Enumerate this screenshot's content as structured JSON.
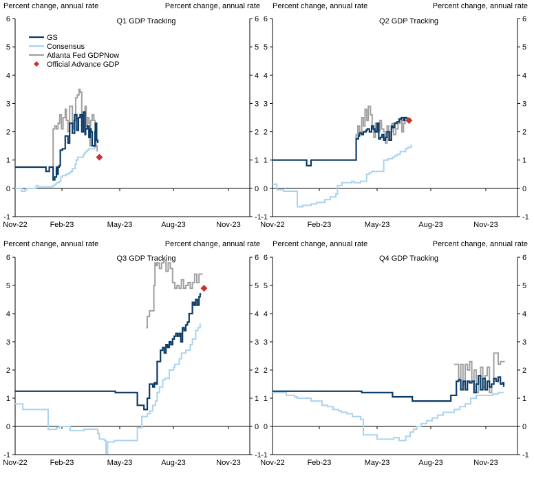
{
  "palette": {
    "gs": "#0b3a66",
    "consensus": "#a9d3ee",
    "gdpnow": "#a0a0a0",
    "advance": "#c83232",
    "axis": "#000000"
  },
  "chart_data": [
    {
      "type": "line",
      "title": "Q1 GDP Tracking",
      "ylabel_left": "Percent change, annual rate",
      "ylabel_right": "Percent change, annual rate",
      "ylim": [
        -1,
        6
      ],
      "yticks": [
        "6",
        "5",
        "4",
        "3",
        "2",
        "1",
        "0",
        "-1"
      ],
      "xticks": [
        "Nov-22",
        "Feb-23",
        "May-23",
        "Aug-23",
        "Nov-23"
      ],
      "legend": {
        "placement": "top-left",
        "entries": [
          "GS",
          "Consensus",
          "Atlanta Fed GDPNow",
          "Official Advance GDP"
        ]
      },
      "series": [
        {
          "name": "GS",
          "color": "#0b3a66",
          "x": [
            0,
            55,
            56,
            60,
            62,
            68,
            69,
            72,
            75,
            76,
            78,
            80,
            82,
            86,
            91,
            96,
            99,
            104,
            108,
            112,
            115,
            118,
            121,
            124,
            127,
            128,
            131,
            134,
            136,
            138,
            140,
            145,
            146,
            148,
            150
          ],
          "y": [
            0.75,
            0.75,
            0.6,
            0.6,
            0.75,
            0.75,
            0.3,
            0.4,
            0.75,
            0.5,
            0.75,
            0.8,
            1.35,
            1.4,
            1.85,
            1.6,
            2.3,
            1.95,
            2.6,
            2.05,
            2.5,
            2.6,
            2.0,
            2.7,
            1.9,
            2.1,
            2.2,
            1.8,
            2.1,
            2.0,
            1.5,
            2.0,
            2.3,
            1.7,
            1.6
          ]
        },
        {
          "name": "Consensus",
          "color": "#a9d3ee",
          "x": [
            0,
            10,
            12,
            18,
            21,
            36,
            38,
            42,
            65,
            68,
            72,
            75,
            80,
            83,
            86,
            92,
            98,
            101,
            104,
            109,
            111,
            114,
            124,
            126,
            128,
            131,
            134,
            142,
            144,
            146,
            148
          ],
          "y": [
            0,
            0,
            -0.1,
            -0.05,
            0,
            0,
            0.1,
            0.05,
            0.05,
            0.1,
            0.15,
            0.2,
            0.25,
            0.4,
            0.45,
            0.5,
            0.55,
            0.6,
            0.7,
            0.85,
            1.0,
            1.1,
            1.2,
            1.25,
            1.3,
            1.35,
            1.4,
            1.4,
            1.45,
            1.5,
            1.45
          ]
        },
        {
          "name": "Atlanta Fed GDPNow",
          "color": "#a0a0a0",
          "x": [
            68,
            69,
            72,
            75,
            78,
            81,
            84,
            87,
            91,
            93,
            96,
            99,
            104,
            106,
            110,
            113,
            116,
            118,
            121,
            124,
            127,
            129,
            131,
            134,
            136,
            137,
            140,
            143,
            145,
            147,
            149
          ],
          "y": [
            0.7,
            2.1,
            2.2,
            2.1,
            2.3,
            2.6,
            2.1,
            2.5,
            2.8,
            2.4,
            2.0,
            2.9,
            2.1,
            2.4,
            3.2,
            3.3,
            3.5,
            3.4,
            2.2,
            2.6,
            2.9,
            2.2,
            2.5,
            2.3,
            1.5,
            2.4,
            2.6,
            2.4,
            2.0,
            1.5,
            1.3
          ]
        },
        {
          "name": "Official Advance GDP",
          "color": "#c83232",
          "marker": "diamond",
          "x": [
            153
          ],
          "y": [
            1.1
          ]
        }
      ]
    },
    {
      "type": "line",
      "title": "Q2 GDP Tracking",
      "ylabel_left": "Percent change, annual rate",
      "ylabel_right": "Percent change, annual rate",
      "ylim": [
        -1,
        6
      ],
      "yticks": [
        "6",
        "5",
        "4",
        "3",
        "2",
        "1",
        "0",
        "-1"
      ],
      "xticks": [
        "Nov-22",
        "Feb-23",
        "May-23",
        "Aug-23",
        "Nov-23"
      ],
      "series": [
        {
          "name": "GS",
          "color": "#0b3a66",
          "x": [
            0,
            60,
            62,
            68,
            70,
            150,
            152,
            156,
            158,
            162,
            165,
            170,
            172,
            176,
            180,
            183,
            186,
            190,
            193,
            196,
            199,
            202,
            205,
            208,
            212,
            216,
            218,
            222,
            226,
            230,
            234,
            238,
            240,
            244
          ],
          "y": [
            1.0,
            1.0,
            0.8,
            0.8,
            1.0,
            1.0,
            1.75,
            1.85,
            1.95,
            1.9,
            2.0,
            2.05,
            2.1,
            2.0,
            2.2,
            2.1,
            2.0,
            2.3,
            1.75,
            1.8,
            1.9,
            1.7,
            1.8,
            2.0,
            1.7,
            2.2,
            2.15,
            2.3,
            2.35,
            2.45,
            2.5,
            2.4,
            2.5,
            2.45
          ]
        },
        {
          "name": "Consensus",
          "color": "#a9d3ee",
          "x": [
            0,
            6,
            8,
            20,
            40,
            45,
            55,
            70,
            80,
            95,
            105,
            115,
            118,
            126,
            144,
            148,
            160,
            168,
            171,
            176,
            180,
            198,
            202,
            210,
            218,
            222,
            226,
            232,
            238,
            242,
            246,
            252
          ],
          "y": [
            0.15,
            0.15,
            -0.05,
            -0.1,
            -0.1,
            -0.65,
            -0.6,
            -0.55,
            -0.5,
            -0.4,
            -0.3,
            -0.2,
            0.1,
            0.2,
            0.25,
            0.2,
            0.25,
            0.25,
            0.5,
            0.55,
            0.6,
            0.6,
            1.0,
            1.05,
            1.1,
            1.15,
            1.2,
            1.3,
            1.3,
            1.4,
            1.45,
            1.55
          ]
        },
        {
          "name": "Atlanta Fed GDPNow",
          "color": "#a0a0a0",
          "x": [
            150,
            152,
            155,
            158,
            162,
            165,
            168,
            171,
            174,
            178,
            181,
            184,
            187,
            191,
            195,
            198,
            202,
            205,
            208,
            211,
            214,
            217,
            220,
            224,
            228,
            232,
            235,
            238,
            241
          ],
          "y": [
            1.8,
            1.9,
            2.2,
            2.0,
            2.5,
            2.2,
            2.8,
            2.4,
            2.9,
            2.6,
            2.2,
            1.8,
            2.3,
            2.0,
            2.4,
            2.1,
            2.0,
            1.6,
            2.2,
            1.7,
            2.0,
            2.3,
            1.9,
            2.1,
            2.3,
            2.4,
            2.0,
            2.3,
            2.5
          ]
        },
        {
          "name": "Official Advance GDP",
          "color": "#c83232",
          "marker": "diamond",
          "x": [
            248
          ],
          "y": [
            2.4
          ]
        }
      ]
    },
    {
      "type": "line",
      "title": "Q3 GDP Tracking",
      "ylabel_left": "Percent change, annual rate",
      "ylabel_right": "Percent change, annual rate",
      "ylim": [
        -1,
        6
      ],
      "yticks": [
        "6",
        "5",
        "4",
        "3",
        "2",
        "1",
        "0",
        "-1"
      ],
      "xticks": [
        "Nov-22",
        "Feb-23",
        "May-23",
        "Aug-23",
        "Nov-23"
      ],
      "series": [
        {
          "name": "GS",
          "color": "#0b3a66",
          "x": [
            0,
            180,
            182,
            220,
            222,
            232,
            234,
            238,
            240,
            244,
            247,
            250,
            253,
            256,
            258,
            262,
            264,
            268,
            271,
            274,
            277,
            280,
            283,
            286,
            289,
            292,
            295,
            298,
            301,
            304,
            307,
            310,
            313,
            316,
            319,
            322,
            325,
            328,
            331,
            334,
            336,
            338
          ],
          "y": [
            1.25,
            1.25,
            1.2,
            1.2,
            0.75,
            0.75,
            0.6,
            0.6,
            1.0,
            1.5,
            1.5,
            1.4,
            1.55,
            1.5,
            2.3,
            2.3,
            2.7,
            2.8,
            2.6,
            2.9,
            2.8,
            3.0,
            2.9,
            3.1,
            3.2,
            3.3,
            3.2,
            3.3,
            3.0,
            3.5,
            3.4,
            3.6,
            3.7,
            4.0,
            4.0,
            4.4,
            4.3,
            4.5,
            4.3,
            4.6,
            4.7,
            4.7
          ]
        },
        {
          "name": "Consensus",
          "color": "#a9d3ee",
          "x": [
            0,
            12,
            14,
            40,
            43,
            46,
            48,
            60,
            75,
            80,
            100,
            120,
            125,
            150,
            153,
            160,
            162,
            165,
            168,
            180,
            200,
            222,
            230,
            240,
            245,
            250,
            255,
            258,
            262,
            268,
            272,
            280,
            288,
            290,
            298,
            302,
            310,
            318,
            322,
            328,
            332,
            336
          ],
          "y": [
            0.8,
            0.8,
            0.6,
            0.6,
            0.6,
            0.6,
            0.6,
            -0.1,
            -0.05,
            0.0,
            -0.15,
            -0.15,
            -0.1,
            -0.25,
            -0.45,
            -0.45,
            -0.5,
            -0.95,
            -0.55,
            -0.5,
            -0.5,
            -0.05,
            0.35,
            0.45,
            0.55,
            0.75,
            0.9,
            1.2,
            1.4,
            1.65,
            1.7,
            2.0,
            2.1,
            2.2,
            2.4,
            2.6,
            2.7,
            2.9,
            3.1,
            3.4,
            3.5,
            3.65
          ]
        },
        {
          "name": "Atlanta Fed GDPNow",
          "color": "#a0a0a0",
          "x": [
            238,
            240,
            244,
            248,
            252,
            254,
            256,
            258,
            262,
            266,
            270,
            274,
            278,
            282,
            286,
            290,
            294,
            298,
            302,
            306,
            310,
            314,
            318,
            322,
            326,
            330,
            334,
            338,
            341
          ],
          "y": [
            3.5,
            3.9,
            4.1,
            4.1,
            5.0,
            5.8,
            5.7,
            5.8,
            5.6,
            5.8,
            5.9,
            5.5,
            5.8,
            5.6,
            5.1,
            4.9,
            5.0,
            4.9,
            5.2,
            4.9,
            5.0,
            5.1,
            4.9,
            5.1,
            5.4,
            5.1,
            5.4,
            5.4,
            5.4
          ]
        },
        {
          "name": "Official Advance GDP",
          "color": "#c83232",
          "marker": "diamond",
          "x": [
            343
          ],
          "y": [
            4.9
          ]
        }
      ]
    },
    {
      "type": "line",
      "title": "Q4 GDP Tracking",
      "ylabel_left": "Percent change, annual rate",
      "ylabel_right": "Percent change, annual rate",
      "ylim": [
        -1,
        6
      ],
      "yticks": [
        "6",
        "5",
        "4",
        "3",
        "2",
        "1",
        "0",
        "-1"
      ],
      "xticks": [
        "Nov-22",
        "Feb-23",
        "May-23",
        "Aug-23",
        "Nov-23"
      ],
      "series": [
        {
          "name": "GS",
          "color": "#0b3a66",
          "x": [
            0,
            160,
            162,
            215,
            218,
            250,
            254,
            320,
            324,
            334,
            338,
            342,
            346,
            350,
            354,
            358,
            362,
            366,
            370,
            374,
            378,
            382,
            386,
            390,
            394,
            398,
            402,
            406,
            410,
            414,
            418,
            420
          ],
          "y": [
            1.25,
            1.25,
            1.2,
            1.2,
            1.05,
            1.05,
            0.9,
            0.9,
            1.1,
            1.6,
            1.65,
            1.3,
            1.6,
            1.3,
            1.6,
            1.55,
            1.6,
            1.2,
            1.5,
            1.8,
            1.3,
            1.7,
            1.3,
            1.6,
            1.4,
            1.5,
            1.7,
            1.6,
            1.75,
            1.5,
            1.55,
            1.4
          ]
        },
        {
          "name": "Consensus",
          "color": "#a9d3ee",
          "x": [
            0,
            20,
            25,
            40,
            45,
            60,
            70,
            80,
            90,
            100,
            110,
            120,
            125,
            135,
            145,
            160,
            165,
            190,
            200,
            220,
            230,
            238,
            242,
            250,
            256,
            262,
            270,
            280,
            290,
            300,
            310,
            320,
            330,
            340,
            350,
            360,
            370,
            380,
            390,
            400,
            410,
            420
          ],
          "y": [
            1.2,
            1.2,
            1.1,
            1.05,
            1.0,
            1.0,
            0.9,
            0.9,
            0.75,
            0.7,
            0.6,
            0.55,
            0.5,
            0.45,
            0.35,
            0.25,
            -0.3,
            -0.45,
            -0.45,
            -0.4,
            -0.5,
            -0.5,
            -0.35,
            -0.2,
            -0.1,
            0.0,
            0.1,
            0.2,
            0.3,
            0.4,
            0.5,
            0.5,
            0.6,
            0.7,
            0.8,
            1.0,
            1.1,
            1.1,
            1.1,
            1.15,
            1.2,
            1.2
          ]
        },
        {
          "name": "Atlanta Fed GDPNow",
          "color": "#a0a0a0",
          "x": [
            330,
            334,
            338,
            342,
            346,
            350,
            354,
            358,
            362,
            366,
            370,
            374,
            378,
            382,
            386,
            390,
            394,
            398,
            402,
            406,
            410,
            414,
            418,
            422
          ],
          "y": [
            2.2,
            2.2,
            1.7,
            2.2,
            1.5,
            2.2,
            2.0,
            2.3,
            1.6,
            2.0,
            1.2,
            1.8,
            2.1,
            1.4,
            1.8,
            2.1,
            1.2,
            1.5,
            2.6,
            2.6,
            2.2,
            2.3,
            2.3,
            2.3
          ]
        }
      ]
    }
  ]
}
